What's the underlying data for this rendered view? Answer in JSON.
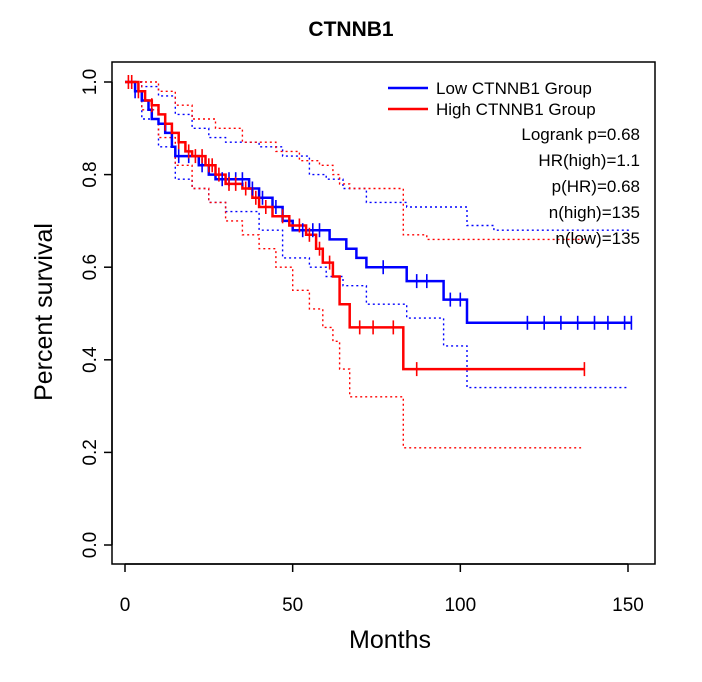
{
  "chart_data": {
    "type": "line",
    "title": "CTNNB1",
    "xlabel": "Months",
    "ylabel": "Percent survival",
    "xlim": [
      0,
      150
    ],
    "ylim": [
      0,
      1
    ],
    "x_ticks": [
      0,
      50,
      100,
      150
    ],
    "y_ticks": [
      0.0,
      0.2,
      0.4,
      0.6,
      0.8,
      1.0
    ],
    "x_tick_labels": [
      "0",
      "50",
      "100",
      "150"
    ],
    "y_tick_labels": [
      "0.0",
      "0.2",
      "0.4",
      "0.6",
      "0.8",
      "1.0"
    ],
    "legend": [
      {
        "label": "Low CTNNB1 Group",
        "color": "#0000ff"
      },
      {
        "label": "High CTNNB1 Group",
        "color": "#ff0000"
      }
    ],
    "stats": [
      "Logrank p=0.68",
      "HR(high)=1.1",
      "p(HR)=0.68",
      "n(high)=135",
      "n(low)=135"
    ],
    "series": [
      {
        "name": "Low CTNNB1 Group",
        "color": "#0000ff",
        "steps": [
          [
            0,
            1.0
          ],
          [
            3,
            0.98
          ],
          [
            5,
            0.96
          ],
          [
            7,
            0.94
          ],
          [
            8,
            0.92
          ],
          [
            10,
            0.91
          ],
          [
            12,
            0.89
          ],
          [
            14,
            0.86
          ],
          [
            15,
            0.84
          ],
          [
            22,
            0.82
          ],
          [
            25,
            0.8
          ],
          [
            27,
            0.79
          ],
          [
            37,
            0.77
          ],
          [
            40,
            0.75
          ],
          [
            44,
            0.73
          ],
          [
            47,
            0.7
          ],
          [
            50,
            0.68
          ],
          [
            61,
            0.66
          ],
          [
            66,
            0.64
          ],
          [
            69,
            0.62
          ],
          [
            72,
            0.6
          ],
          [
            84,
            0.57
          ],
          [
            95,
            0.53
          ],
          [
            102,
            0.48
          ],
          [
            151,
            0.48
          ]
        ],
        "censors": [
          [
            3,
            0.98
          ],
          [
            16,
            0.84
          ],
          [
            19,
            0.84
          ],
          [
            23,
            0.82
          ],
          [
            29,
            0.79
          ],
          [
            31,
            0.79
          ],
          [
            33,
            0.79
          ],
          [
            35,
            0.79
          ],
          [
            38,
            0.77
          ],
          [
            41,
            0.75
          ],
          [
            45,
            0.73
          ],
          [
            53,
            0.68
          ],
          [
            56,
            0.68
          ],
          [
            58,
            0.68
          ],
          [
            77,
            0.6
          ],
          [
            87,
            0.57
          ],
          [
            90,
            0.57
          ],
          [
            97,
            0.53
          ],
          [
            100,
            0.53
          ],
          [
            120,
            0.48
          ],
          [
            125,
            0.48
          ],
          [
            130,
            0.48
          ],
          [
            135,
            0.48
          ],
          [
            140,
            0.48
          ],
          [
            144,
            0.48
          ],
          [
            149,
            0.48
          ],
          [
            151,
            0.48
          ]
        ],
        "ci_upper": [
          [
            0,
            1.0
          ],
          [
            5,
            0.99
          ],
          [
            10,
            0.97
          ],
          [
            15,
            0.93
          ],
          [
            20,
            0.9
          ],
          [
            25,
            0.88
          ],
          [
            30,
            0.87
          ],
          [
            40,
            0.86
          ],
          [
            47,
            0.84
          ],
          [
            55,
            0.8
          ],
          [
            60,
            0.79
          ],
          [
            65,
            0.77
          ],
          [
            72,
            0.74
          ],
          [
            84,
            0.73
          ],
          [
            102,
            0.69
          ],
          [
            110,
            0.68
          ],
          [
            151,
            0.68
          ]
        ],
        "ci_lower": [
          [
            0,
            1.0
          ],
          [
            5,
            0.92
          ],
          [
            10,
            0.86
          ],
          [
            15,
            0.79
          ],
          [
            20,
            0.77
          ],
          [
            25,
            0.74
          ],
          [
            30,
            0.72
          ],
          [
            40,
            0.68
          ],
          [
            47,
            0.62
          ],
          [
            55,
            0.6
          ],
          [
            60,
            0.58
          ],
          [
            65,
            0.56
          ],
          [
            72,
            0.52
          ],
          [
            84,
            0.49
          ],
          [
            95,
            0.43
          ],
          [
            102,
            0.34
          ],
          [
            150,
            0.34
          ]
        ]
      },
      {
        "name": "High CTNNB1 Group",
        "color": "#ff0000",
        "steps": [
          [
            0,
            1.0
          ],
          [
            4,
            0.98
          ],
          [
            6,
            0.96
          ],
          [
            8,
            0.95
          ],
          [
            10,
            0.93
          ],
          [
            12,
            0.91
          ],
          [
            14,
            0.89
          ],
          [
            16,
            0.87
          ],
          [
            18,
            0.85
          ],
          [
            20,
            0.84
          ],
          [
            24,
            0.82
          ],
          [
            27,
            0.8
          ],
          [
            30,
            0.78
          ],
          [
            35,
            0.77
          ],
          [
            38,
            0.75
          ],
          [
            40,
            0.73
          ],
          [
            44,
            0.71
          ],
          [
            49,
            0.69
          ],
          [
            54,
            0.67
          ],
          [
            57,
            0.64
          ],
          [
            59,
            0.61
          ],
          [
            62,
            0.58
          ],
          [
            64,
            0.52
          ],
          [
            67,
            0.47
          ],
          [
            83,
            0.38
          ],
          [
            137,
            0.38
          ]
        ],
        "censors": [
          [
            1,
            1.0
          ],
          [
            2,
            1.0
          ],
          [
            4,
            0.98
          ],
          [
            8,
            0.95
          ],
          [
            12,
            0.91
          ],
          [
            16,
            0.87
          ],
          [
            19,
            0.85
          ],
          [
            21,
            0.84
          ],
          [
            23,
            0.84
          ],
          [
            25,
            0.82
          ],
          [
            26,
            0.82
          ],
          [
            28,
            0.8
          ],
          [
            31,
            0.78
          ],
          [
            33,
            0.78
          ],
          [
            36,
            0.77
          ],
          [
            39,
            0.75
          ],
          [
            42,
            0.73
          ],
          [
            47,
            0.71
          ],
          [
            52,
            0.69
          ],
          [
            55,
            0.67
          ],
          [
            58,
            0.64
          ],
          [
            61,
            0.61
          ],
          [
            70,
            0.47
          ],
          [
            74,
            0.47
          ],
          [
            80,
            0.47
          ],
          [
            87,
            0.38
          ],
          [
            137,
            0.38
          ]
        ],
        "ci_upper": [
          [
            0,
            1.0
          ],
          [
            5,
            1.0
          ],
          [
            10,
            0.98
          ],
          [
            15,
            0.95
          ],
          [
            20,
            0.92
          ],
          [
            27,
            0.9
          ],
          [
            35,
            0.87
          ],
          [
            45,
            0.85
          ],
          [
            52,
            0.83
          ],
          [
            58,
            0.82
          ],
          [
            62,
            0.8
          ],
          [
            64,
            0.78
          ],
          [
            67,
            0.77
          ],
          [
            83,
            0.67
          ],
          [
            90,
            0.66
          ],
          [
            137,
            0.66
          ]
        ],
        "ci_lower": [
          [
            0,
            1.0
          ],
          [
            5,
            0.94
          ],
          [
            10,
            0.88
          ],
          [
            15,
            0.82
          ],
          [
            20,
            0.77
          ],
          [
            25,
            0.74
          ],
          [
            30,
            0.7
          ],
          [
            35,
            0.67
          ],
          [
            40,
            0.64
          ],
          [
            45,
            0.6
          ],
          [
            50,
            0.55
          ],
          [
            55,
            0.51
          ],
          [
            59,
            0.47
          ],
          [
            62,
            0.44
          ],
          [
            64,
            0.38
          ],
          [
            67,
            0.32
          ],
          [
            83,
            0.21
          ],
          [
            136,
            0.21
          ]
        ]
      }
    ]
  }
}
